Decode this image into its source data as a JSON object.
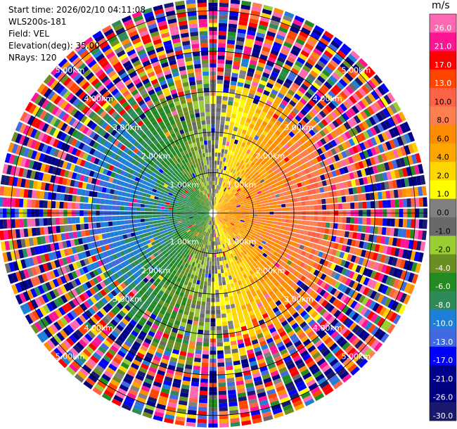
{
  "header": {
    "start_time": "Start time: 2026/02/10 04:11:08",
    "instrument": "WLS200s-181",
    "field": "Field: VEL",
    "elevation": "Elevation(deg): 35.00",
    "nrays": "NRays: 120"
  },
  "chart_data": {
    "type": "heatmap",
    "projection": "polar",
    "field": "VEL",
    "unit": "m/s",
    "nrays": 120,
    "elevation_deg": 35.0,
    "max_range_km": 5.3,
    "ring_labels_km": [
      1,
      2,
      3,
      4,
      5
    ],
    "ring_label_text": [
      "1.00km",
      "2.00km",
      "3.00km",
      "4.00km",
      "5.00km"
    ],
    "velocity_pattern": {
      "max_abs_ms": 10,
      "description_values": "positive (receding) to the east, negative (approaching) to the west, noise beyond ~3 km"
    },
    "colorbar": {
      "min": -30,
      "max": 30,
      "ticks": [
        "26.0",
        "21.0",
        "17.0",
        "13.0",
        "10.0",
        "8.0",
        "6.0",
        "4.0",
        "2.0",
        "1.0",
        "0.0",
        "-1.0",
        "-2.0",
        "-4.0",
        "-6.0",
        "-8.0",
        "-10.0",
        "-13.0",
        "-17.0",
        "-21.0",
        "-26.0",
        "-30.0"
      ],
      "bins": [
        {
          "lo": -30,
          "hi": -26,
          "color": "#191970"
        },
        {
          "lo": -26,
          "hi": -21,
          "color": "#000080"
        },
        {
          "lo": -21,
          "hi": -17,
          "color": "#00008b"
        },
        {
          "lo": -17,
          "hi": -13,
          "color": "#0000ff"
        },
        {
          "lo": -13,
          "hi": -10,
          "color": "#4169e1"
        },
        {
          "lo": -10,
          "hi": -8,
          "color": "#1e7fd8"
        },
        {
          "lo": -8,
          "hi": -6,
          "color": "#2e8b57"
        },
        {
          "lo": -6,
          "hi": -4,
          "color": "#228b22"
        },
        {
          "lo": -4,
          "hi": -2,
          "color": "#6b8e23"
        },
        {
          "lo": -2,
          "hi": -1,
          "color": "#9acd32"
        },
        {
          "lo": -1,
          "hi": 0,
          "color": "#696969"
        },
        {
          "lo": 0,
          "hi": 1,
          "color": "#808080"
        },
        {
          "lo": 1,
          "hi": 2,
          "color": "#ffff00"
        },
        {
          "lo": 2,
          "hi": 4,
          "color": "#ffd700"
        },
        {
          "lo": 4,
          "hi": 6,
          "color": "#ffa500"
        },
        {
          "lo": 6,
          "hi": 8,
          "color": "#ff8c00"
        },
        {
          "lo": 8,
          "hi": 10,
          "color": "#ff7f50"
        },
        {
          "lo": 10,
          "hi": 13,
          "color": "#ff6347"
        },
        {
          "lo": 13,
          "hi": 17,
          "color": "#ff4500"
        },
        {
          "lo": 17,
          "hi": 21,
          "color": "#ff0000"
        },
        {
          "lo": 21,
          "hi": 26,
          "color": "#ff1493"
        },
        {
          "lo": 26,
          "hi": 30,
          "color": "#ff69b4"
        }
      ]
    }
  }
}
